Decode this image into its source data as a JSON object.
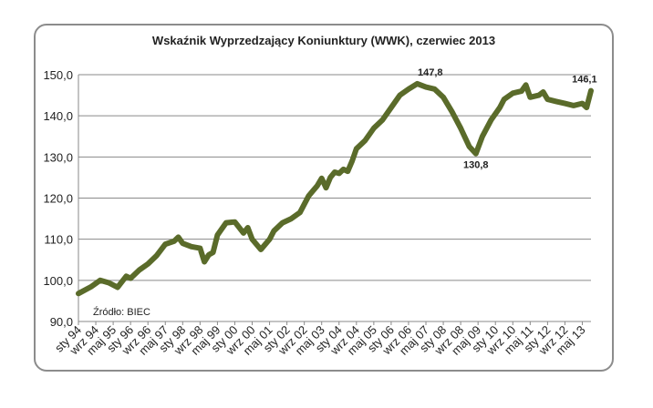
{
  "chart_data": {
    "type": "line",
    "title": "Wskaźnik Wyprzedzający Koniunktury (WWK), czerwiec 2013",
    "source": "Źródło: BIEC",
    "xlabel": "",
    "ylabel": "",
    "ylim": [
      90,
      150
    ],
    "yticks": [
      "90,0",
      "100,0",
      "110,0",
      "120,0",
      "130,0",
      "140,0",
      "150,0"
    ],
    "grid": true,
    "line_color": "#5a6b2a",
    "x_tick_labels": [
      "sty 94",
      "wrz 94",
      "maj 95",
      "sty 96",
      "wrz 96",
      "maj 97",
      "sty 98",
      "wrz 98",
      "maj 99",
      "sty 00",
      "wrz 00",
      "maj 01",
      "sty 02",
      "wrz 02",
      "maj 03",
      "sty 04",
      "wrz 04",
      "maj 05",
      "sty 06",
      "wrz 06",
      "maj 07",
      "sty 08",
      "wrz 08",
      "maj 09",
      "sty 10",
      "wrz 10",
      "maj 11",
      "sty 12",
      "wrz 12",
      "maj 13"
    ],
    "annotations": [
      {
        "text": "147,8",
        "x": 162,
        "y": 147.8
      },
      {
        "text": "130,8",
        "x": 183,
        "y": 130.8
      },
      {
        "text": "146,1",
        "x": 233,
        "y": 146.1
      }
    ],
    "series": [
      {
        "x_start": "sty 94",
        "step": "1 month",
        "points": [
          [
            0,
            96.8
          ],
          [
            6,
            98.5
          ],
          [
            10,
            100.0
          ],
          [
            14,
            99.4
          ],
          [
            18,
            98.3
          ],
          [
            22,
            101.0
          ],
          [
            24,
            100.5
          ],
          [
            28,
            102.5
          ],
          [
            32,
            104.0
          ],
          [
            36,
            106.0
          ],
          [
            40,
            108.8
          ],
          [
            44,
            109.5
          ],
          [
            46,
            110.5
          ],
          [
            48,
            109.0
          ],
          [
            52,
            108.2
          ],
          [
            56,
            107.8
          ],
          [
            58,
            104.5
          ],
          [
            60,
            106.2
          ],
          [
            62,
            106.8
          ],
          [
            64,
            111.0
          ],
          [
            68,
            114.0
          ],
          [
            72,
            114.2
          ],
          [
            76,
            111.5
          ],
          [
            78,
            112.8
          ],
          [
            80,
            110.0
          ],
          [
            84,
            107.5
          ],
          [
            88,
            110.0
          ],
          [
            90,
            112.0
          ],
          [
            94,
            114.0
          ],
          [
            98,
            115.0
          ],
          [
            102,
            116.5
          ],
          [
            106,
            120.5
          ],
          [
            108,
            121.8
          ],
          [
            110,
            123.0
          ],
          [
            112,
            124.8
          ],
          [
            114,
            122.5
          ],
          [
            116,
            125.0
          ],
          [
            118,
            126.3
          ],
          [
            120,
            126.0
          ],
          [
            122,
            127.0
          ],
          [
            124,
            126.5
          ],
          [
            126,
            129.0
          ],
          [
            128,
            132.0
          ],
          [
            132,
            134.0
          ],
          [
            136,
            137.0
          ],
          [
            140,
            139.0
          ],
          [
            144,
            142.0
          ],
          [
            148,
            145.0
          ],
          [
            152,
            146.5
          ],
          [
            156,
            147.8
          ],
          [
            160,
            147.0
          ],
          [
            164,
            146.5
          ],
          [
            168,
            144.5
          ],
          [
            172,
            141.0
          ],
          [
            176,
            137.0
          ],
          [
            180,
            132.5
          ],
          [
            183,
            130.8
          ],
          [
            186,
            135.0
          ],
          [
            190,
            139.0
          ],
          [
            194,
            142.0
          ],
          [
            196,
            144.0
          ],
          [
            200,
            145.5
          ],
          [
            204,
            146.0
          ],
          [
            206,
            147.5
          ],
          [
            208,
            144.5
          ],
          [
            212,
            145.0
          ],
          [
            214,
            145.8
          ],
          [
            216,
            144.0
          ],
          [
            220,
            143.5
          ],
          [
            224,
            143.0
          ],
          [
            228,
            142.5
          ],
          [
            232,
            143.0
          ],
          [
            234,
            142.0
          ],
          [
            236,
            146.1
          ]
        ]
      }
    ]
  }
}
